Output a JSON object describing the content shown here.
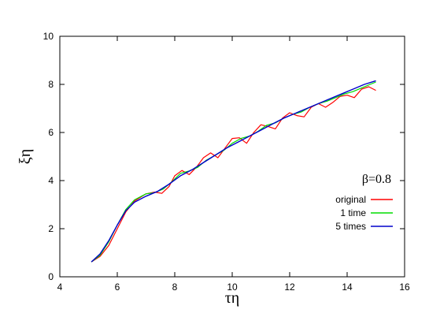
{
  "chart_data": {
    "type": "line",
    "xlabel": "τη",
    "ylabel": "ξη",
    "xlim": [
      4,
      16
    ],
    "ylim": [
      0,
      10
    ],
    "xticks": [
      4,
      6,
      8,
      10,
      12,
      14,
      16
    ],
    "yticks": [
      0,
      2,
      4,
      6,
      8,
      10
    ],
    "grid": false,
    "legend_position": "right",
    "annotation": "β=0.8",
    "series": [
      {
        "name": "original",
        "color": "#ff0000",
        "x": [
          5.1,
          5.4,
          5.7,
          6.0,
          6.3,
          6.6,
          7.0,
          7.3,
          7.55,
          7.8,
          8.0,
          8.25,
          8.5,
          8.75,
          9.0,
          9.25,
          9.5,
          9.75,
          10.0,
          10.25,
          10.5,
          10.75,
          11.0,
          11.25,
          11.5,
          11.75,
          12.0,
          12.25,
          12.5,
          12.75,
          13.0,
          13.25,
          13.5,
          13.75,
          14.0,
          14.25,
          14.5,
          14.75,
          15.0
        ],
        "y": [
          0.62,
          0.85,
          1.3,
          2.0,
          2.7,
          3.15,
          3.45,
          3.52,
          3.47,
          3.75,
          4.2,
          4.42,
          4.25,
          4.55,
          4.95,
          5.15,
          4.95,
          5.35,
          5.75,
          5.78,
          5.55,
          6.0,
          6.32,
          6.25,
          6.15,
          6.6,
          6.82,
          6.7,
          6.65,
          7.05,
          7.2,
          7.05,
          7.25,
          7.5,
          7.55,
          7.45,
          7.8,
          7.9,
          7.75
        ]
      },
      {
        "name": "1 time",
        "color": "#00dd00",
        "x": [
          5.1,
          5.4,
          5.7,
          6.0,
          6.3,
          6.6,
          7.0,
          7.3,
          7.6,
          7.9,
          8.2,
          8.5,
          8.8,
          9.1,
          9.4,
          9.7,
          10.0,
          10.3,
          10.6,
          10.9,
          11.2,
          11.5,
          11.8,
          12.1,
          12.4,
          12.7,
          13.0,
          13.3,
          13.6,
          13.9,
          14.2,
          14.5,
          14.8,
          15.0
        ],
        "y": [
          0.62,
          0.9,
          1.45,
          2.15,
          2.8,
          3.2,
          3.45,
          3.5,
          3.65,
          3.95,
          4.3,
          4.4,
          4.55,
          4.85,
          5.05,
          5.25,
          5.55,
          5.75,
          5.85,
          6.05,
          6.3,
          6.4,
          6.6,
          6.75,
          6.85,
          7.05,
          7.2,
          7.3,
          7.45,
          7.6,
          7.7,
          7.85,
          8.0,
          8.1
        ]
      },
      {
        "name": "5 times",
        "color": "#0000cc",
        "x": [
          5.1,
          5.4,
          5.7,
          6.0,
          6.3,
          6.6,
          7.0,
          7.4,
          7.8,
          8.2,
          8.6,
          9.0,
          9.4,
          9.8,
          10.2,
          10.6,
          11.0,
          11.4,
          11.8,
          12.2,
          12.6,
          13.0,
          13.4,
          13.8,
          14.2,
          14.6,
          15.0
        ],
        "y": [
          0.62,
          0.95,
          1.5,
          2.15,
          2.75,
          3.1,
          3.35,
          3.55,
          3.85,
          4.2,
          4.45,
          4.75,
          5.05,
          5.35,
          5.6,
          5.85,
          6.1,
          6.35,
          6.6,
          6.8,
          7.0,
          7.2,
          7.4,
          7.6,
          7.8,
          8.0,
          8.15
        ]
      }
    ]
  }
}
